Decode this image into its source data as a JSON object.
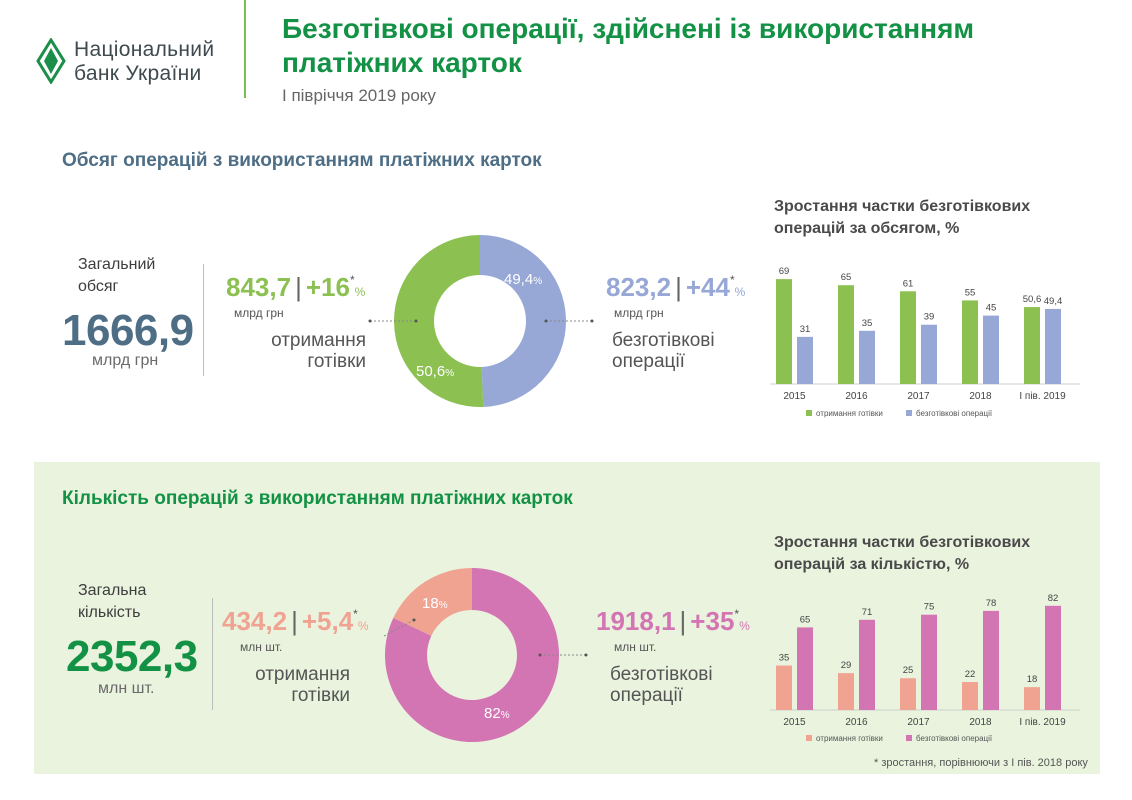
{
  "header": {
    "logo_line1": "Національний",
    "logo_line2": "банк України",
    "title": "Безготівкові операції, здійснені із використанням платіжних карток",
    "subtitle": "І півріччя 2019 року"
  },
  "volume": {
    "section_title": "Обсяг операцій з використанням платіжних карток",
    "total_label_1": "Загальний",
    "total_label_2": "обсяг",
    "total_value": "1666,9",
    "total_unit": "млрд грн",
    "cash": {
      "value": "843,7",
      "growth": "+16",
      "pct_sign": "%",
      "star": "*",
      "unit": "млрд грн",
      "desc1": "отримання",
      "desc2": "готівки"
    },
    "cashless": {
      "value": "823,2",
      "growth": "+44",
      "pct_sign": "%",
      "star": "*",
      "unit": "млрд грн",
      "desc1": "безготівкові",
      "desc2": "операції"
    },
    "donut_labels": {
      "cash": "50,6",
      "cashless": "49,4",
      "pct": "%"
    },
    "chart_title": "Зростання частки безготівкових операцій за обсягом, %",
    "legend_cash": "отримання готівки",
    "legend_cashless": "безготівкові операції"
  },
  "count": {
    "section_title": "Кількість операцій з використанням платіжних карток",
    "total_label_1": "Загальна",
    "total_label_2": "кількість",
    "total_value": "2352,3",
    "total_unit": "млн шт.",
    "cash": {
      "value": "434,2",
      "growth": "+5,4",
      "pct_sign": "%",
      "star": "*",
      "unit": "млн шт.",
      "desc1": "отримання",
      "desc2": "готівки"
    },
    "cashless": {
      "value": "1918,1",
      "growth": "+35",
      "pct_sign": "%",
      "star": "*",
      "unit": "млн шт.",
      "desc1": "безготівкові",
      "desc2": "операції"
    },
    "donut_labels": {
      "cash": "18",
      "cashless": "82",
      "pct": "%"
    },
    "chart_title": "Зростання частки безготівкових операцій за кількістю, %",
    "legend_cash": "отримання готівки",
    "legend_cashless": "безготівкові операції"
  },
  "footnote": "* зростання, порівнюючи з І пів. 2018 року",
  "colors": {
    "green": "#8cc152",
    "blue_grey": "#97a7d6",
    "salmon": "#f0a391",
    "pink": "#d374b3",
    "title_green": "#139246",
    "slate": "#4e6e86",
    "section2_bg": "#eaf3de"
  },
  "chart_data": [
    {
      "type": "pie",
      "labels": [
        "",
        ""
      ],
      "values": [
        50.6,
        49.4
      ],
      "colors": [
        "#8cc152",
        "#97a7d6"
      ],
      "style": "donut"
    },
    {
      "type": "bar",
      "title": "Зростання частки безготівкових операцій за обсягом, %",
      "categories": [
        "2015",
        "2016",
        "2017",
        "2018",
        "І пів. 2019"
      ],
      "series": [
        {
          "name": "отримання готівки",
          "values": [
            69,
            65,
            61,
            55,
            50.6
          ],
          "labels": [
            "69",
            "65",
            "61",
            "55",
            "50,6"
          ],
          "color": "#8cc152"
        },
        {
          "name": "безготівкові операції",
          "values": [
            31,
            35,
            39,
            45,
            49.4
          ],
          "labels": [
            "31",
            "35",
            "39",
            "45",
            "49,4"
          ],
          "color": "#97a7d6"
        }
      ],
      "ylim": [
        0,
        75
      ],
      "legend": "bottom"
    },
    {
      "type": "pie",
      "labels": [
        "",
        ""
      ],
      "values": [
        18,
        82
      ],
      "colors": [
        "#f0a391",
        "#d374b3"
      ],
      "style": "donut"
    },
    {
      "type": "bar",
      "title": "Зростання частки безготівкових операцій за кількістю, %",
      "categories": [
        "2015",
        "2016",
        "2017",
        "2018",
        "І пів. 2019"
      ],
      "series": [
        {
          "name": "отримання готівки",
          "values": [
            35,
            29,
            25,
            22,
            18
          ],
          "labels": [
            "35",
            "29",
            "25",
            "22",
            "18"
          ],
          "color": "#f0a391"
        },
        {
          "name": "безготівкові операції",
          "values": [
            65,
            71,
            75,
            78,
            82
          ],
          "labels": [
            "65",
            "71",
            "75",
            "78",
            "82"
          ],
          "color": "#d374b3"
        }
      ],
      "ylim": [
        0,
        85
      ],
      "legend": "bottom"
    }
  ]
}
